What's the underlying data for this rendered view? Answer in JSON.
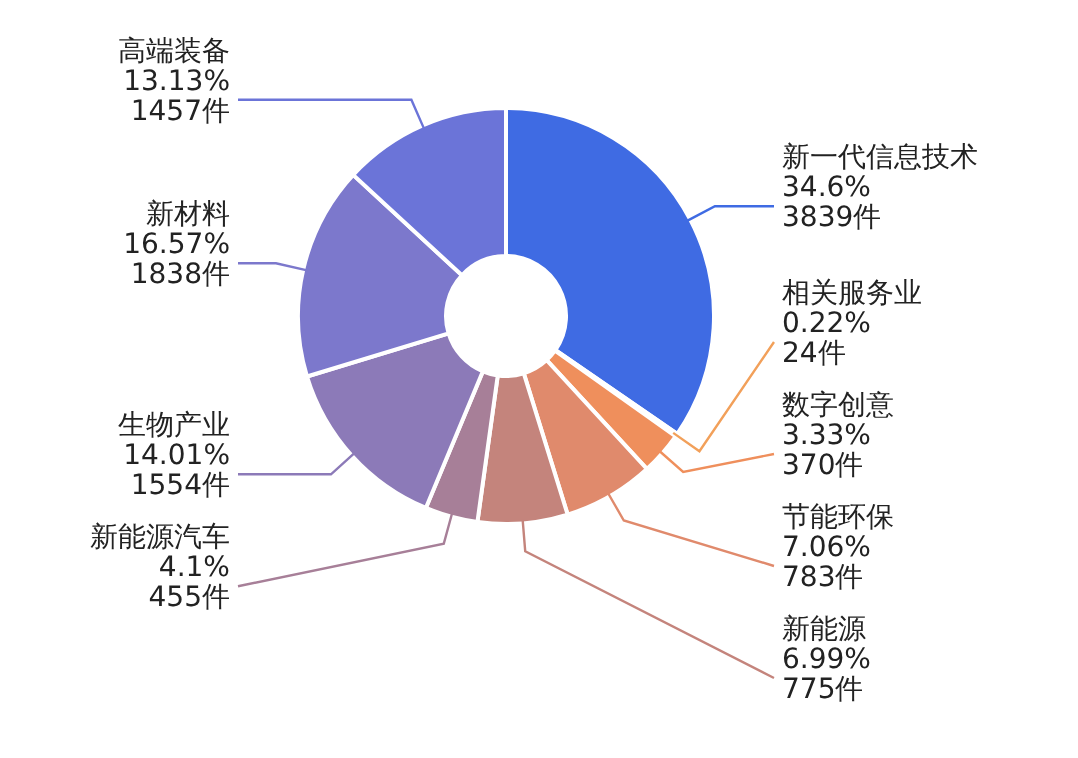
{
  "chart_data": {
    "type": "donut",
    "categories": [
      "新一代信息技术",
      "相关服务业",
      "数字创意",
      "节能环保",
      "新能源",
      "新能源汽车",
      "生物产业",
      "新材料",
      "高端装备"
    ],
    "values": [
      3839,
      24,
      370,
      783,
      775,
      455,
      1554,
      1838,
      1457
    ],
    "value_labels": [
      "34.6%\n3839件",
      "0.22%\n24件",
      "3.33%\n370件",
      "7.06%\n783件",
      "6.99%\n775件",
      "4.1%\n455件",
      "14.01%\n1554件",
      "16.57%\n1838件",
      "13.13%\n1457件"
    ],
    "colors": [
      "#3f6be3",
      "#f2a05a",
      "#ef8f5c",
      "#e08a6c",
      "#c4847c",
      "#a77f98",
      "#8c7ab8",
      "#7c78cc",
      "#6b74d8"
    ]
  }
}
